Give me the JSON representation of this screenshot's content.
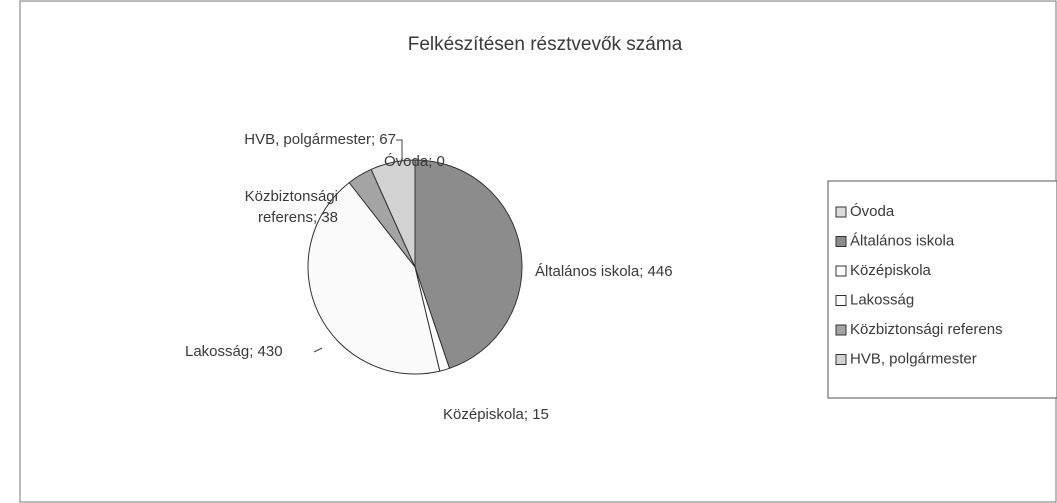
{
  "chart_data": {
    "type": "pie",
    "title": "Felkészítésen résztvevők száma",
    "categories": [
      "Óvoda",
      "Általános iskola",
      "Középiskola",
      "Lakosság",
      "Közbiztonsági referens",
      "HVB, polgármester"
    ],
    "values": [
      0,
      446,
      15,
      430,
      38,
      67
    ],
    "value_labels": [
      "Óvoda; 0",
      "Általános iskola; 446",
      "Középiskola; 15",
      "Lakosság; 430",
      "Közbiztonsági referens; 38",
      "HVB, polgármester; 67"
    ],
    "colors": [
      "#dcdcdc",
      "#8c8c8c",
      "#ffffff",
      "#fbfbfb",
      "#a4a4a4",
      "#d2d2d2"
    ],
    "legend": "right"
  }
}
